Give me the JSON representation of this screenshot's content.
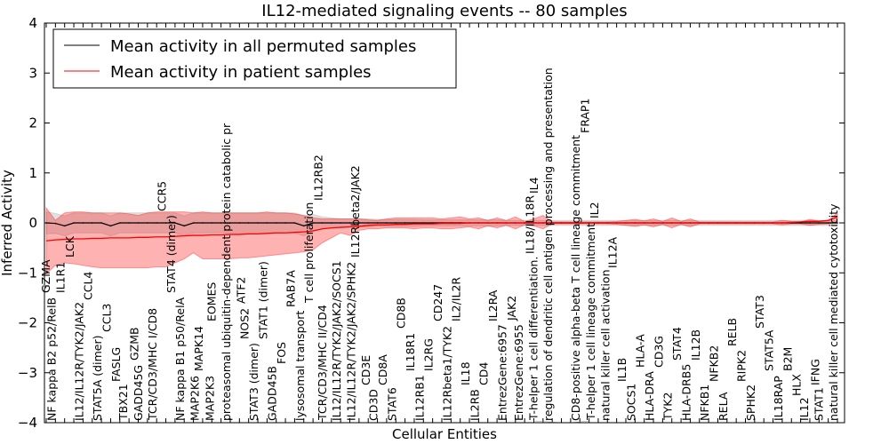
{
  "chart_data": {
    "type": "line",
    "title": "IL12-mediated signaling events -- 80 samples",
    "xlabel": "Cellular Entities",
    "ylabel": "Inferred Activity",
    "ylim": [
      -4,
      4
    ],
    "yticks": [
      -4,
      -3,
      -2,
      -1,
      0,
      1,
      2,
      3,
      4
    ],
    "legend_placement": "top-left",
    "categories": [
      "GZMA",
      "NF kappa B2 p52/RelB",
      "IL1R1",
      "LCK",
      "IL12/IL12R/TYK2/JAK2",
      "CCL4",
      "STAT5A (dimer)",
      "CCL3",
      "FASLG",
      "TBX21",
      "GZMB",
      "GADD45G",
      "TCR/CD3/MHC I/CD8",
      "CCR5",
      "STAT4 (dimer)",
      "NF kappa B1 p50/RelA",
      "MAP2K6",
      "MAPK14",
      "MAP2K3",
      "EOMES",
      "proteasomal ubiquitin-dependent protein catabolic pr",
      "ATF2",
      "NOS2",
      "STAT3 (dimer)",
      "STAT1 (dimer)",
      "GADD45B",
      "FOS",
      "RAB7A",
      "lysosomal transport",
      "T cell proliferation",
      "IL12RB2",
      "TCR/CD3/MHC II/CD4",
      "IL12/IL12R/TYK2/JAK2/SOCS1",
      "IL12/IL12R/TYK2/JAK2/SPHK2",
      "IL12Rbeta2/JAK2",
      "CD3E",
      "CD3D",
      "CD8A",
      "STAT6",
      "CD8B",
      "IL18R1",
      "IL12RB1",
      "IL2RG",
      "CD247",
      "IL12Rbeta1/TYK2",
      "IL2/IL2R",
      "IL18",
      "IL2RB",
      "CD4",
      "IL2RA",
      "EntrezGene:6957",
      "JAK2",
      "EntrezGene:6955",
      "IL18/IL18R",
      "IL4",
      "regulation of dendritic cell antigen processing and presentation",
      "T-helper 1 cell differentiation.",
      "T-helper 1 cell lineage commitment",
      "CD8-positive alpha-beta T cell lineage commitment",
      "FRAP1",
      "IL2",
      "natural killer cell activation",
      "IL12A",
      "IL1B",
      "SOCS1",
      "HLA-A",
      "HLA-DRA",
      "CD3G",
      "TYK2",
      "STAT4",
      "HLA-DRB5",
      "IL12B",
      "NFKB1",
      "NFKB2",
      "RELA",
      "RELB",
      "RIPK2",
      "SPHK2",
      "STAT3",
      "STAT5A",
      "IL18RAP",
      "B2M",
      "HLX",
      "IL12",
      "IFNG",
      "STAT1",
      "natural killer cell mediated cytotoxicity"
    ],
    "series": [
      {
        "name": "Mean activity in all permuted samples",
        "color": "#000000",
        "band_color": "#aaaaaa",
        "values": [
          0,
          -0.01,
          -0.06,
          0,
          0,
          0,
          0,
          -0.06,
          0,
          0,
          0,
          0,
          0,
          0,
          0,
          -0.06,
          0,
          0,
          0,
          0,
          0,
          0,
          0,
          0,
          0,
          0,
          0,
          0,
          -0.06,
          0,
          0,
          0,
          0,
          0,
          0,
          0,
          0,
          0,
          0,
          0,
          0,
          0,
          0,
          0,
          0,
          0,
          0,
          0,
          0,
          0,
          0,
          0,
          0,
          0,
          0,
          0,
          0,
          0,
          0,
          0,
          0,
          0,
          0,
          0,
          0,
          0,
          0,
          0,
          0,
          0,
          0,
          0,
          0,
          0,
          0,
          0,
          0,
          0,
          0,
          0,
          0,
          0,
          0,
          0,
          0,
          0,
          0
        ],
        "band_halfwidth": [
          0.22,
          0.2,
          0.2,
          0.2,
          0.2,
          0.2,
          0.2,
          0.2,
          0.2,
          0.2,
          0.2,
          0.2,
          0.2,
          0.2,
          0.2,
          0.2,
          0.2,
          0.2,
          0.2,
          0.2,
          0.2,
          0.2,
          0.2,
          0.2,
          0.2,
          0.2,
          0.2,
          0.2,
          0.2,
          0.17,
          0.12,
          0.1,
          0.08,
          0.08,
          0.08,
          0.08,
          0.07,
          0.07,
          0.07,
          0.07,
          0.07,
          0.06,
          0.06,
          0.06,
          0.06,
          0.06,
          0.06,
          0.06,
          0.06,
          0.06,
          0.05,
          0.05,
          0.05,
          0.05,
          0.05,
          0.05,
          0.05,
          0.05,
          0.05,
          0.05,
          0.05,
          0.05,
          0.05,
          0.05,
          0.05,
          0.05,
          0.05,
          0.05,
          0.05,
          0.05,
          0.05,
          0.05,
          0.05,
          0.05,
          0.05,
          0.05,
          0.05,
          0.05,
          0.05,
          0.05,
          0.05,
          0.05,
          0.05,
          0.05,
          0.05,
          0.05,
          0.05
        ]
      },
      {
        "name": "Mean activity in patient samples",
        "color": "#ff0000",
        "band_color": "#ff0000",
        "values": [
          -0.36,
          -0.34,
          -0.33,
          -0.32,
          -0.32,
          -0.31,
          -0.31,
          -0.3,
          -0.3,
          -0.3,
          -0.29,
          -0.29,
          -0.28,
          -0.28,
          -0.27,
          -0.26,
          -0.25,
          -0.25,
          -0.24,
          -0.24,
          -0.23,
          -0.23,
          -0.22,
          -0.22,
          -0.21,
          -0.2,
          -0.2,
          -0.19,
          -0.18,
          -0.16,
          -0.12,
          -0.1,
          -0.09,
          -0.08,
          -0.07,
          -0.05,
          -0.04,
          -0.04,
          -0.03,
          -0.03,
          -0.02,
          -0.02,
          -0.02,
          -0.01,
          -0.01,
          -0.01,
          0,
          0,
          0,
          0,
          0,
          0,
          0,
          0,
          0,
          0,
          0,
          0,
          0,
          0,
          0,
          0,
          0,
          0,
          0,
          0,
          0,
          0,
          0,
          0,
          0,
          0,
          0,
          0,
          0,
          0,
          0,
          0,
          0,
          0,
          0,
          0.01,
          0.02,
          0.03,
          0.03,
          0.05,
          0.12
        ],
        "upper": [
          0.3,
          0.05,
          0.2,
          0.22,
          0.22,
          0.2,
          0.2,
          0.2,
          0.2,
          0.18,
          0.15,
          0.2,
          0.22,
          0.22,
          0.22,
          0.22,
          0.2,
          0.22,
          0.2,
          0.2,
          0.2,
          0.2,
          0.2,
          0.2,
          0.22,
          0.2,
          0.2,
          0.18,
          0.15,
          0.1,
          0.08,
          0.08,
          0.08,
          0.08,
          0.08,
          0.06,
          0.05,
          0.08,
          0.1,
          0.1,
          0.1,
          0.1,
          0.1,
          0.08,
          0.1,
          0.12,
          0.08,
          0.1,
          0.05,
          0.1,
          0.05,
          0.12,
          0.03,
          0.08,
          0.15,
          0.02,
          0.02,
          0.02,
          0.02,
          0.02,
          0.02,
          0.02,
          0.03,
          0.05,
          0.07,
          0.04,
          0.08,
          0.03,
          0.1,
          0.03,
          0.08,
          0.02,
          0.02,
          0.02,
          0.02,
          0.02,
          0.02,
          0.02,
          0.02,
          0.02,
          0.05,
          0.03,
          0.02,
          0.07,
          0.04,
          0.05,
          0.2
        ],
        "lower": [
          -1.02,
          -0.85,
          -0.8,
          -0.82,
          -0.85,
          -0.88,
          -0.9,
          -0.9,
          -0.9,
          -0.9,
          -0.9,
          -0.9,
          -0.88,
          -0.88,
          -0.8,
          -0.72,
          -0.6,
          -0.72,
          -0.72,
          -0.72,
          -0.72,
          -0.7,
          -0.7,
          -0.68,
          -0.66,
          -0.64,
          -0.62,
          -0.6,
          -0.58,
          -0.54,
          -0.4,
          -0.3,
          -0.2,
          -0.25,
          -0.15,
          -0.12,
          -0.12,
          -0.1,
          -0.1,
          -0.1,
          -0.12,
          -0.1,
          -0.1,
          -0.12,
          -0.12,
          -0.1,
          -0.08,
          -0.12,
          -0.06,
          -0.1,
          -0.05,
          -0.12,
          -0.04,
          -0.06,
          -0.12,
          -0.02,
          -0.02,
          -0.02,
          -0.02,
          -0.02,
          -0.02,
          -0.02,
          -0.03,
          -0.05,
          -0.07,
          -0.04,
          -0.08,
          -0.03,
          -0.1,
          -0.03,
          -0.08,
          -0.02,
          -0.02,
          -0.02,
          -0.02,
          -0.02,
          -0.02,
          -0.02,
          -0.02,
          -0.02,
          -0.04,
          -0.02,
          -0.02,
          -0.05,
          -0.03,
          -0.02,
          0.0
        ]
      }
    ]
  }
}
